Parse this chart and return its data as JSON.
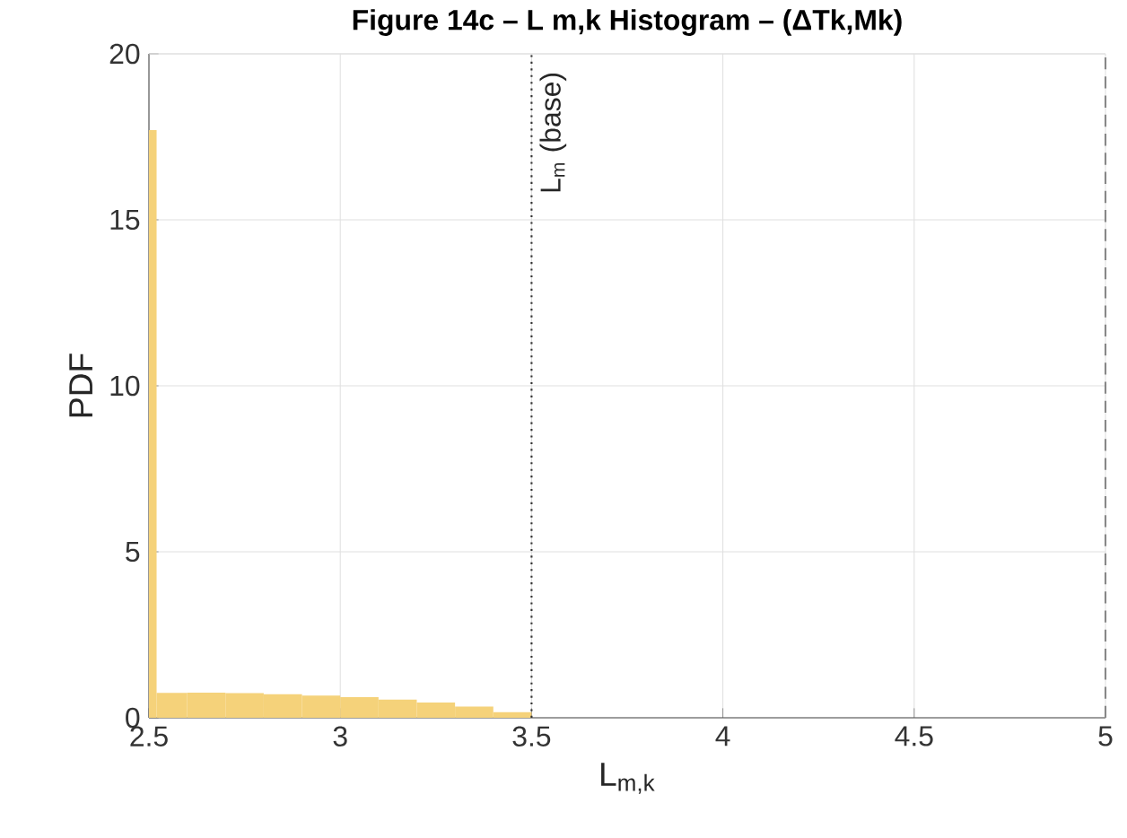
{
  "chart_data": {
    "type": "histogram",
    "title": "Figure 14c –  L m,k  Histogram – (ΔTk,Mk)",
    "xlabel": "L$_{m,k}$",
    "ylabel": "PDF",
    "bins": [
      2.5,
      2.52,
      2.6,
      2.7,
      2.8,
      2.9,
      3.0,
      3.1,
      3.2,
      3.3,
      3.4,
      3.5
    ],
    "values": [
      17.7,
      0.75,
      0.76,
      0.74,
      0.71,
      0.67,
      0.62,
      0.55,
      0.46,
      0.34,
      0.17
    ],
    "color": "#f5d27a",
    "xlim": [
      2.5,
      5
    ],
    "ylim": [
      0,
      20
    ],
    "xticks": [
      2.5,
      3,
      3.5,
      4,
      4.5,
      5
    ],
    "yticks": [
      0,
      5,
      10,
      15,
      20
    ],
    "grid": true,
    "ref_lines": [
      {
        "axis": "x",
        "value": 3.5,
        "label": "L$_{m}$ (base)",
        "line_style": "dotted",
        "color": "#333333"
      },
      {
        "axis": "x",
        "value": 5,
        "line_style": "dashed",
        "color": "#888888"
      }
    ]
  }
}
